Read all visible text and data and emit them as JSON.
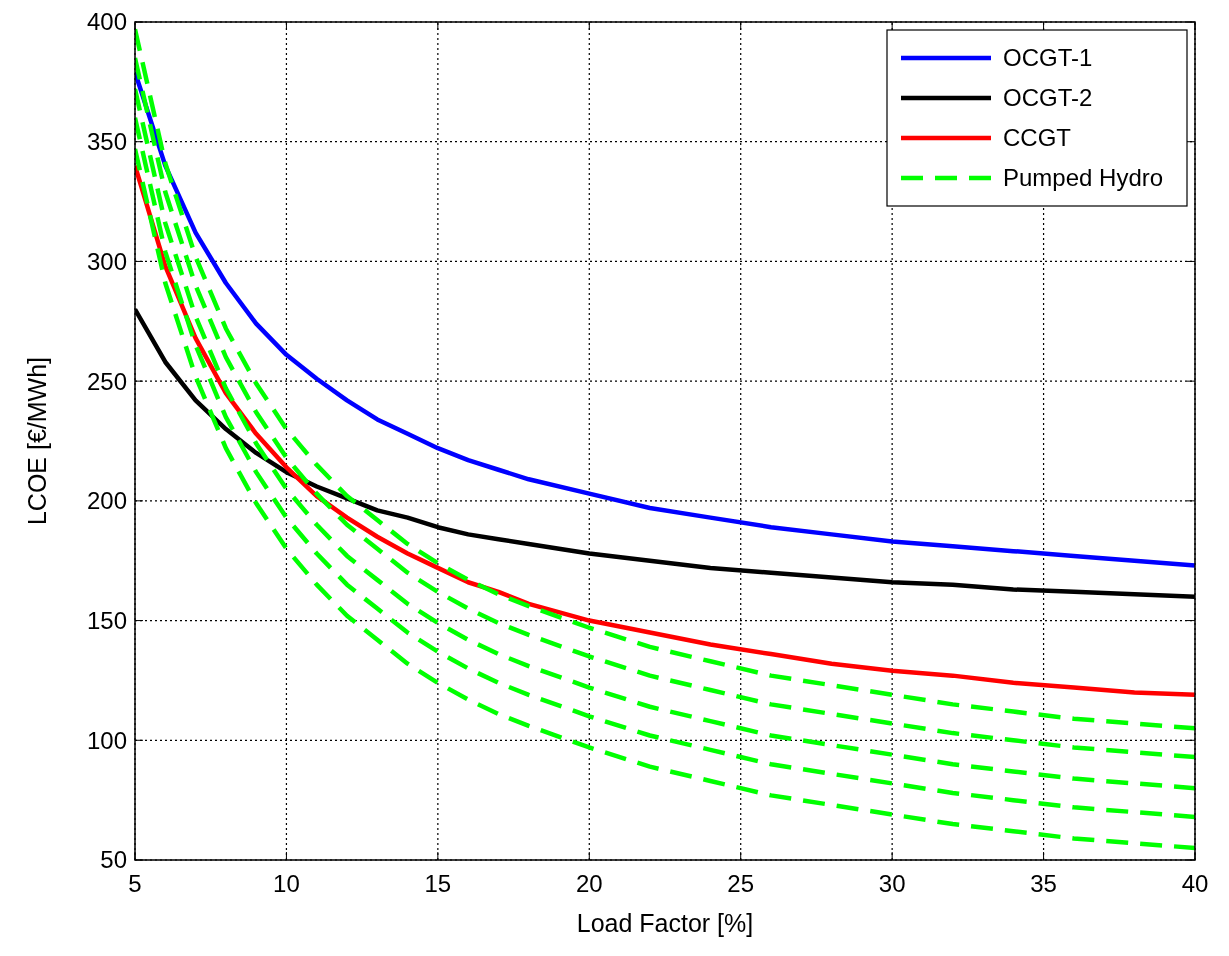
{
  "chart_data": {
    "type": "line",
    "xlabel": "Load Factor [%]",
    "ylabel": "LCOE [€/MWh]",
    "x": [
      5,
      6,
      7,
      8,
      9,
      10,
      11,
      12,
      13,
      14,
      15,
      16,
      17,
      18,
      20,
      22,
      24,
      26,
      28,
      30,
      32,
      34,
      36,
      38,
      40
    ],
    "xlim": [
      5,
      40
    ],
    "xticks": [
      5,
      10,
      15,
      20,
      25,
      30,
      35,
      40
    ],
    "ylim": [
      50,
      400
    ],
    "yticks": [
      50,
      100,
      150,
      200,
      250,
      300,
      350,
      400
    ],
    "grid": true,
    "legend": "top right",
    "line_style": "solid",
    "marker": "none",
    "series": [
      {
        "name": "OCGT-1",
        "color": "#0000ff",
        "values": [
          379,
          340,
          312,
          291,
          274,
          261,
          251,
          242,
          234,
          228,
          222,
          217,
          213,
          209,
          203,
          197,
          193,
          189,
          186,
          183,
          181,
          179,
          177,
          175,
          173
        ]
      },
      {
        "name": "OCGT-2",
        "color": "#000000",
        "values": [
          280,
          258,
          242,
          230,
          220,
          212,
          206,
          201,
          196,
          193,
          189,
          186,
          184,
          182,
          178,
          175,
          172,
          170,
          168,
          166,
          165,
          163,
          162,
          161,
          160
        ]
      },
      {
        "name": "CCGT",
        "color": "#ff0000",
        "values": [
          340,
          298,
          268,
          245,
          228,
          214,
          202,
          193,
          185,
          178,
          172,
          166,
          162,
          157,
          150,
          145,
          140,
          136,
          132,
          129,
          127,
          124,
          122,
          120,
          119
        ]
      },
      {
        "name": "Pumped Hydro",
        "color": "#00ff00",
        "line_style": "dashed",
        "values": [
          397,
          341,
          302,
          272,
          249,
          230,
          215,
          202,
          192,
          182,
          174,
          167,
          161,
          156,
          147,
          139,
          133,
          127,
          123,
          119,
          115,
          112,
          109,
          107,
          105
        ]
      },
      {
        "color": "#00ff00",
        "line_style": "dashed",
        "values": [
          385,
          329,
          290,
          260,
          237,
          218,
          203,
          190,
          180,
          170,
          162,
          155,
          149,
          144,
          135,
          127,
          121,
          115,
          111,
          107,
          103,
          100,
          97,
          95,
          93
        ]
      },
      {
        "color": "#00ff00",
        "line_style": "dashed",
        "values": [
          372,
          316,
          277,
          247,
          224,
          205,
          190,
          177,
          167,
          157,
          149,
          142,
          136,
          131,
          122,
          114,
          108,
          102,
          98,
          94,
          90,
          87,
          84,
          82,
          80
        ]
      },
      {
        "color": "#00ff00",
        "line_style": "dashed",
        "values": [
          360,
          304,
          265,
          235,
          212,
          193,
          178,
          165,
          155,
          145,
          137,
          130,
          124,
          119,
          110,
          102,
          96,
          90,
          86,
          82,
          78,
          75,
          72,
          70,
          68
        ]
      },
      {
        "color": "#00ff00",
        "line_style": "dashed",
        "values": [
          347,
          291,
          252,
          222,
          199,
          180,
          165,
          152,
          142,
          132,
          124,
          117,
          111,
          106,
          97,
          89,
          83,
          77,
          73,
          69,
          65,
          62,
          59,
          57,
          55
        ]
      }
    ]
  }
}
